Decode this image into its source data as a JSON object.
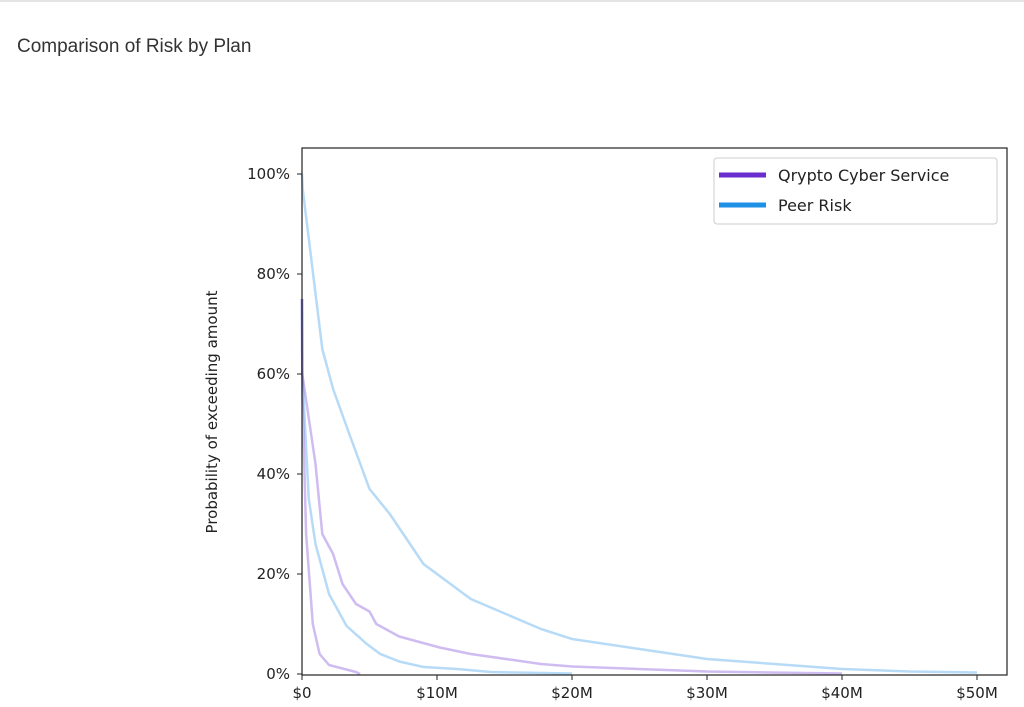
{
  "page": {
    "title": "Comparison of Risk by Plan"
  },
  "chart_data": {
    "type": "line",
    "title": "",
    "xlabel": "",
    "ylabel": "Probability of exceeding amount",
    "xlim": [
      0,
      52
    ],
    "ylim": [
      0,
      100
    ],
    "x_unit": "$M",
    "x_ticks": [
      0,
      10,
      20,
      30,
      40,
      50
    ],
    "x_tick_labels": [
      "$0",
      "$10M",
      "$20M",
      "$30M",
      "$40M",
      "$50M"
    ],
    "y_ticks": [
      0,
      20,
      40,
      60,
      80,
      100
    ],
    "y_tick_labels": [
      "0%",
      "20%",
      "40%",
      "60%",
      "80%",
      "100%"
    ],
    "grid": false,
    "legend": {
      "placement": "top-right",
      "entries": [
        {
          "label": "Qrypto Cyber Service",
          "color": "#6a2ecf"
        },
        {
          "label": "Peer Risk",
          "color": "#1e90e6"
        }
      ]
    },
    "series": [
      {
        "legend_index": 1,
        "color": "#1e90e6",
        "x": [
          0,
          0.05,
          1.5,
          2.3,
          3.5,
          5,
          6.5,
          9,
          12.5,
          17.7,
          20,
          25,
          30,
          35,
          40,
          45,
          50
        ],
        "y": [
          100,
          97,
          65,
          57,
          48,
          37,
          32,
          22,
          15,
          9,
          7,
          5,
          3,
          2,
          1,
          0.5,
          0.3
        ]
      },
      {
        "legend_index": 0,
        "color": "#6a2ecf",
        "x": [
          0,
          0.02,
          1,
          1.5,
          2.3,
          3,
          4,
          5,
          5.5,
          7.2,
          10.2,
          12.5,
          17.7,
          20,
          30,
          40
        ],
        "y": [
          75,
          60,
          42,
          28,
          24,
          18,
          14,
          12.5,
          10,
          7.5,
          5.3,
          4,
          2,
          1.5,
          0.5,
          0.1
        ]
      },
      {
        "legend_index": 1,
        "color": "#1e90e6",
        "x": [
          0,
          0.02,
          0.5,
          1,
          2,
          3.3,
          4.8,
          5.8,
          7.2,
          9,
          11.5,
          14,
          20
        ],
        "y": [
          75,
          60,
          35,
          26,
          16,
          9.6,
          6,
          4,
          2.5,
          1.4,
          1,
          0.4,
          0.1
        ]
      },
      {
        "legend_index": 0,
        "color": "#6a2ecf",
        "x": [
          0,
          0.02,
          0.3,
          0.8,
          1.3,
          2,
          4,
          4.3
        ],
        "y": [
          75,
          57,
          28,
          10,
          4,
          1.8,
          0.4,
          0
        ]
      }
    ]
  }
}
